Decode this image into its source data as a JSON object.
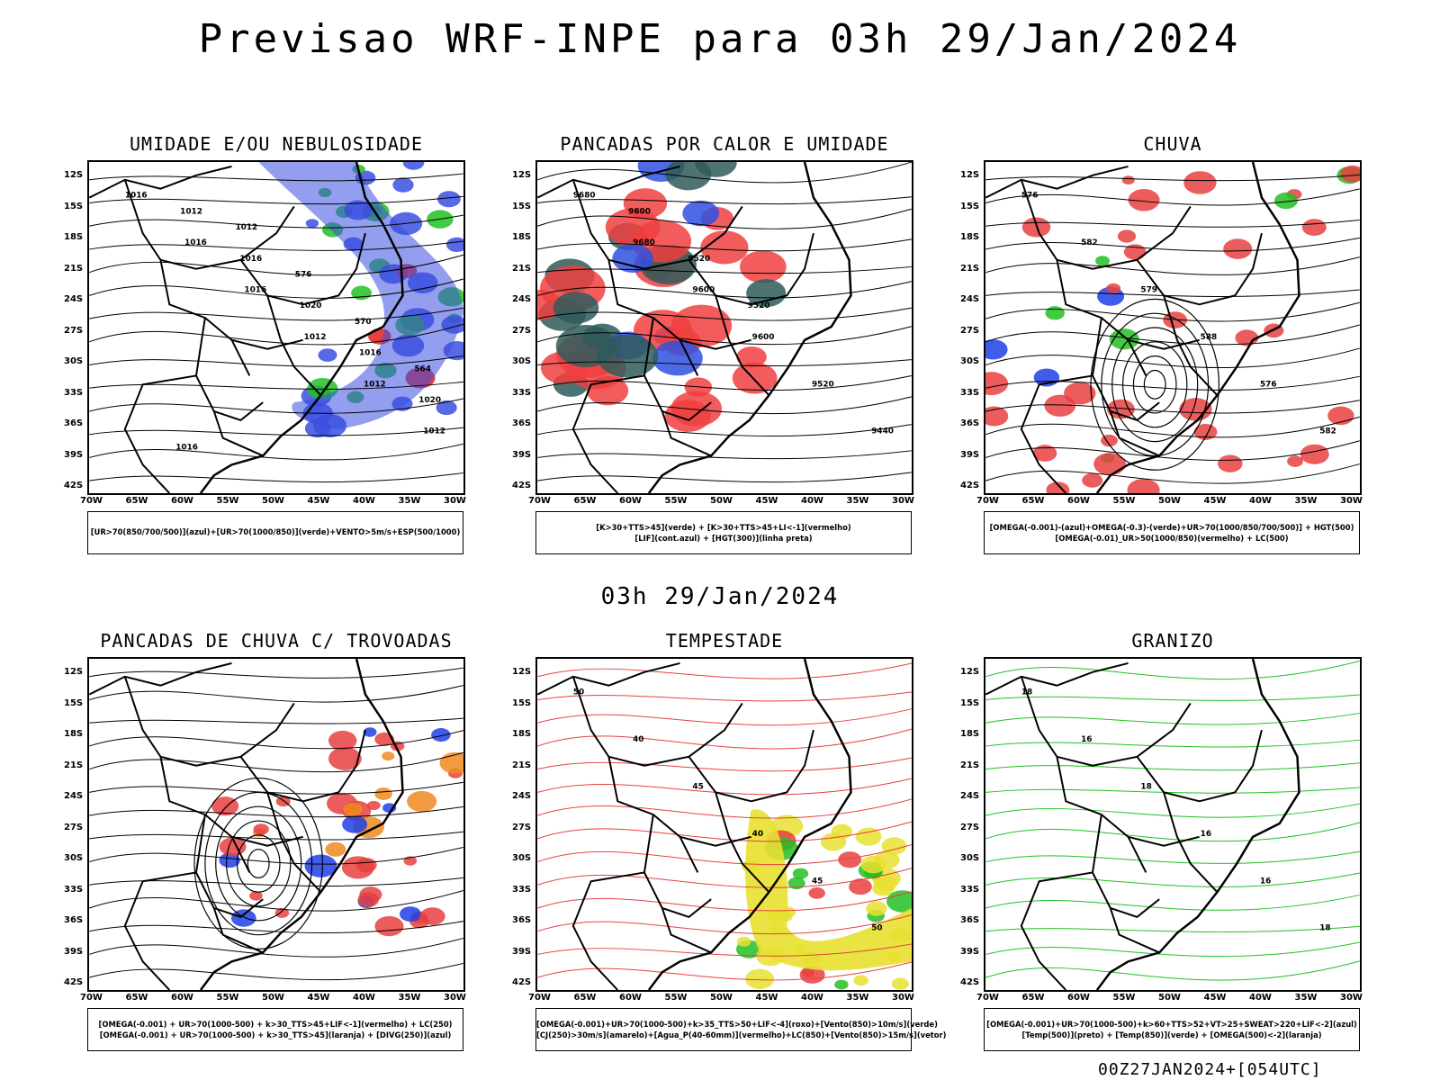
{
  "header": {
    "title": "Previsao WRF-INPE  para 03h 29/Jan/2024"
  },
  "mid_label": "03h 29/Jan/2024",
  "footer": "00Z27JAN2024+[054UTC]",
  "axes": {
    "lat": [
      "12S",
      "15S",
      "18S",
      "21S",
      "24S",
      "27S",
      "30S",
      "33S",
      "36S",
      "39S",
      "42S"
    ],
    "lon": [
      "70W",
      "65W",
      "60W",
      "55W",
      "50W",
      "45W",
      "40W",
      "35W",
      "30W"
    ]
  },
  "panels": [
    {
      "title": "UMIDADE E/OU NEBULOSIDADE",
      "legend": [
        "[UR>70(850/700/500)](azul)+[UR>70(1000/850)](verde)+VENTO>5m/s+ESP(500/1000)"
      ],
      "contour_labels": [
        "1016",
        "1016",
        "1016",
        "1012",
        "1012",
        "1012",
        "1012",
        "1016",
        "1020",
        "1016",
        "1020",
        "1016",
        "1012",
        "576",
        "570",
        "564"
      ],
      "palette": {
        "primary": "#3b4fe0",
        "secondary": "#22c022",
        "accent": "#e02020"
      }
    },
    {
      "title": "PANCADAS POR CALOR E UMIDADE",
      "legend": [
        "[K>30+TTS>45](verde) + [K>30+TTS>45+LI<-1](vermelho)",
        "[LIF](cont.azul) + [HGT(300)](linha preta)"
      ],
      "contour_labels": [
        "9680",
        "9680",
        "9600",
        "9600",
        "9520",
        "9440",
        "9600",
        "9520",
        "9520"
      ],
      "palette": {
        "primary": "#f04040",
        "secondary": "#2f5a5a",
        "accent": "#3050e0"
      }
    },
    {
      "title": "CHUVA",
      "legend": [
        "[OMEGA(-0.001)-(azul)+OMEGA(-0.3)-(verde)+UR>70(1000/850/700/500)] + HGT(500)",
        "[OMEGA(-0.01)_UR>50(1000/850)(vermelho) + LC(500)"
      ],
      "contour_labels": [
        "576",
        "582",
        "579",
        "588",
        "576",
        "582"
      ],
      "palette": {
        "primary": "#e84040",
        "secondary": "#22c022",
        "accent": "#2040e8"
      }
    },
    {
      "title": "PANCADAS DE CHUVA C/ TROVOADAS",
      "legend": [
        "[OMEGA(-0.001) + UR>70(1000-500) + k>30_TTS>45+LIF<-1](vermelho) + LC(250)",
        "[OMEGA(-0.001) + UR>70(1000-500) + k>30_TTS>45](laranja) + [DIVG(250)](azul)"
      ],
      "contour_labels": [],
      "palette": {
        "primary": "#e84040",
        "secondary": "#f08a20",
        "accent": "#2040e8"
      }
    },
    {
      "title": "TEMPESTADE",
      "legend": [
        "[OMEGA(-0.001)+UR>70(1000-500)+k>35_TTS>50+LIF<-4](roxo)+[Vento(850)>10m/s](verde)",
        "[CJ(250)>30m/s](amarelo)+[Agua_P(40-60mm)](vermelho)+LC(850)+[Vento(850)>15m/s](vetor)"
      ],
      "contour_labels": [
        "50",
        "40",
        "45",
        "40",
        "45",
        "50"
      ],
      "palette": {
        "primary": "#e8e030",
        "secondary": "#22c022",
        "accent": "#e84040"
      }
    },
    {
      "title": "GRANIZO",
      "legend": [
        "[OMEGA(-0.001)+UR>70(1000-500)+k>60+TTS>52+VT>25+SWEAT>220+LIF<-2](azul)",
        "[Temp(500)](preto) + [Temp(850)](verde) + [OMEGA(500)<-2](laranja)"
      ],
      "contour_labels": [
        "18",
        "16",
        "18",
        "16",
        "16",
        "18"
      ],
      "palette": {
        "primary": "#22c022",
        "secondary": "#f08a20",
        "accent": "#2040e8"
      }
    }
  ]
}
